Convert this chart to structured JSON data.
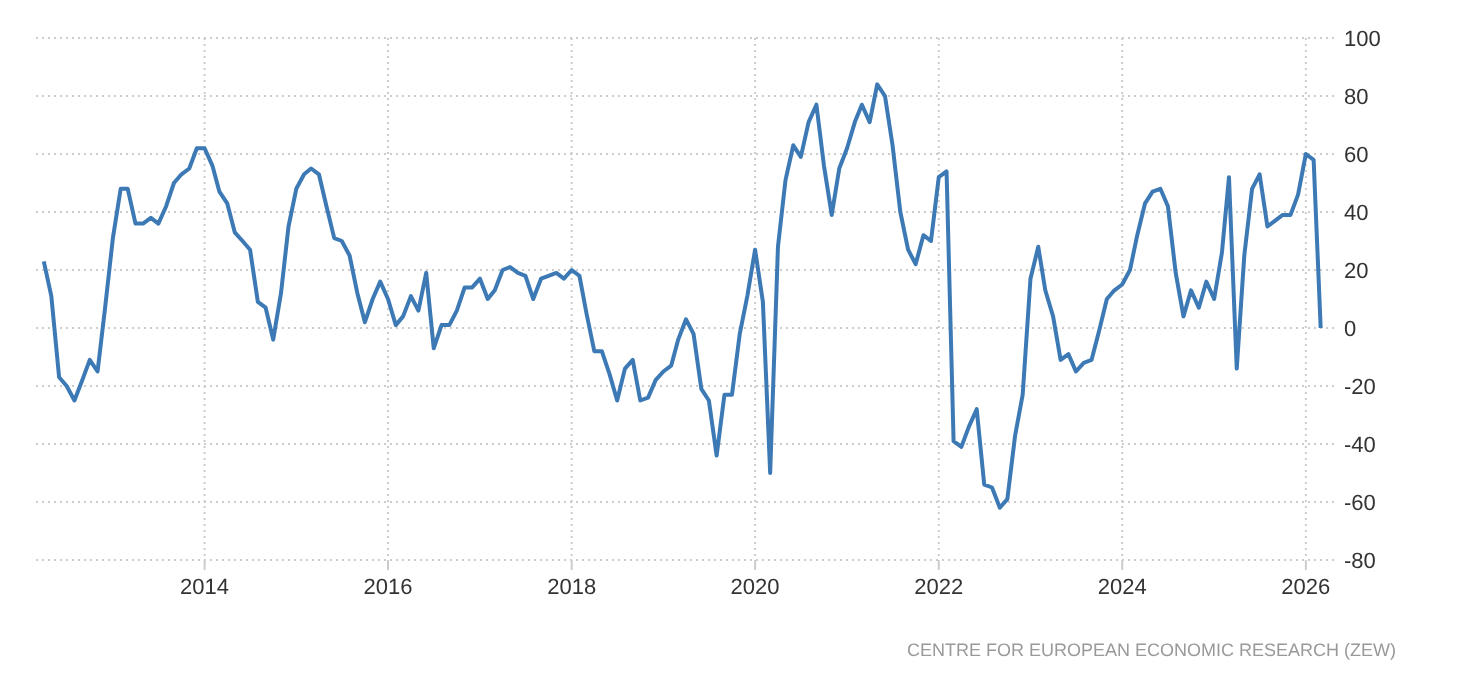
{
  "chart_data": {
    "type": "line",
    "x": [
      "2012-04",
      "2012-05",
      "2012-06",
      "2012-07",
      "2012-08",
      "2012-09",
      "2012-10",
      "2012-11",
      "2012-12",
      "2013-01",
      "2013-02",
      "2013-03",
      "2013-04",
      "2013-05",
      "2013-06",
      "2013-07",
      "2013-08",
      "2013-09",
      "2013-10",
      "2013-11",
      "2013-12",
      "2014-01",
      "2014-02",
      "2014-03",
      "2014-04",
      "2014-05",
      "2014-06",
      "2014-07",
      "2014-08",
      "2014-09",
      "2014-10",
      "2014-11",
      "2014-12",
      "2015-01",
      "2015-02",
      "2015-03",
      "2015-04",
      "2015-05",
      "2015-06",
      "2015-07",
      "2015-08",
      "2015-09",
      "2015-10",
      "2015-11",
      "2015-12",
      "2016-01",
      "2016-02",
      "2016-03",
      "2016-04",
      "2016-05",
      "2016-06",
      "2016-07",
      "2016-08",
      "2016-09",
      "2016-10",
      "2016-11",
      "2016-12",
      "2017-01",
      "2017-02",
      "2017-03",
      "2017-04",
      "2017-05",
      "2017-06",
      "2017-07",
      "2017-08",
      "2017-09",
      "2017-10",
      "2017-11",
      "2017-12",
      "2018-01",
      "2018-02",
      "2018-03",
      "2018-04",
      "2018-05",
      "2018-06",
      "2018-07",
      "2018-08",
      "2018-09",
      "2018-10",
      "2018-11",
      "2018-12",
      "2019-01",
      "2019-02",
      "2019-03",
      "2019-04",
      "2019-05",
      "2019-06",
      "2019-07",
      "2019-08",
      "2019-09",
      "2019-10",
      "2019-11",
      "2019-12",
      "2020-01",
      "2020-02",
      "2020-03",
      "2020-04",
      "2020-05",
      "2020-06",
      "2020-07",
      "2020-08",
      "2020-09",
      "2020-10",
      "2020-11",
      "2020-12",
      "2021-01",
      "2021-02",
      "2021-03",
      "2021-04",
      "2021-05",
      "2021-06",
      "2021-07",
      "2021-08",
      "2021-09",
      "2021-10",
      "2021-11",
      "2021-12",
      "2022-01",
      "2022-02",
      "2022-03",
      "2022-04",
      "2022-05",
      "2022-06",
      "2022-07",
      "2022-08",
      "2022-09",
      "2022-10",
      "2022-11",
      "2022-12",
      "2023-01",
      "2023-02",
      "2023-03",
      "2023-04",
      "2023-05",
      "2023-06",
      "2023-07",
      "2023-08",
      "2023-09",
      "2023-10",
      "2023-11",
      "2023-12",
      "2024-01",
      "2024-02",
      "2024-03",
      "2024-04",
      "2024-05",
      "2024-06",
      "2024-07",
      "2024-08",
      "2024-09",
      "2024-10",
      "2024-11",
      "2024-12",
      "2025-01",
      "2025-02",
      "2025-03",
      "2025-04",
      "2025-05",
      "2025-06",
      "2025-07",
      "2025-08",
      "2025-09",
      "2025-10",
      "2025-11",
      "2025-12",
      "2026-01",
      "2026-02",
      "2026-03"
    ],
    "series": [
      {
        "color": "#3d7ab5",
        "values": [
          23,
          11,
          -17,
          -20,
          -25,
          -18,
          -11,
          -15,
          7,
          31,
          48,
          48,
          36,
          36,
          38,
          36,
          42,
          50,
          53,
          55,
          62,
          62,
          56,
          47,
          43,
          33,
          30,
          27,
          9,
          7,
          -4,
          12,
          35,
          48,
          53,
          55,
          53,
          42,
          31,
          30,
          25,
          12,
          2,
          10,
          16,
          10,
          1,
          4,
          11,
          6,
          19,
          -7,
          1,
          1,
          6,
          14,
          14,
          17,
          10,
          13,
          20,
          21,
          19,
          18,
          10,
          17,
          18,
          19,
          17,
          20,
          18,
          5,
          -8,
          -8,
          -16,
          -25,
          -14,
          -11,
          -25,
          -24,
          -18,
          -15,
          -13,
          -4,
          3,
          -2,
          -21,
          -25,
          -44,
          -23,
          -23,
          -2,
          11,
          27,
          9,
          -50,
          28,
          51,
          63,
          59,
          71,
          77,
          56,
          39,
          55,
          62,
          71,
          77,
          71,
          84,
          80,
          63,
          40,
          27,
          22,
          32,
          30,
          52,
          54,
          -39,
          -41,
          -34,
          -28,
          -54,
          -55,
          -62,
          -59,
          -37,
          -23,
          17,
          28,
          13,
          4,
          -11,
          -9,
          -15,
          -12,
          -11,
          -1,
          10,
          13,
          15,
          20,
          32,
          43,
          47,
          48,
          42,
          19,
          4,
          13,
          7,
          16,
          10,
          26,
          52,
          -14,
          25,
          48,
          53,
          35,
          37,
          39,
          39,
          46,
          60,
          58,
          0
        ]
      }
    ],
    "xlim": [
      "2012-03",
      "2026-05"
    ],
    "xticks": [
      {
        "value": "2014",
        "label": "2014"
      },
      {
        "value": "2016",
        "label": "2016"
      },
      {
        "value": "2018",
        "label": "2018"
      },
      {
        "value": "2020",
        "label": "2020"
      },
      {
        "value": "2022",
        "label": "2022"
      },
      {
        "value": "2024",
        "label": "2024"
      },
      {
        "value": "2026",
        "label": "2026"
      }
    ],
    "ylim": [
      -80,
      100
    ],
    "yticks": [
      -80,
      -60,
      -40,
      -20,
      0,
      20,
      40,
      60,
      80,
      100
    ],
    "grid": true,
    "line_style": "solid",
    "marker": "none",
    "annotations": [
      "CENTRE FOR EUROPEAN ECONOMIC RESEARCH (ZEW)"
    ]
  }
}
